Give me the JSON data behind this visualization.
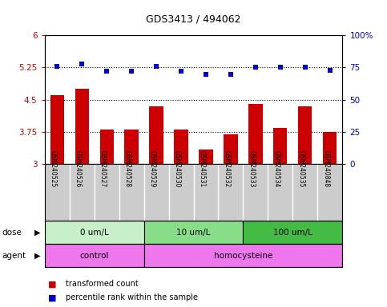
{
  "title": "GDS3413 / 494062",
  "samples": [
    "GSM240525",
    "GSM240526",
    "GSM240527",
    "GSM240528",
    "GSM240529",
    "GSM240530",
    "GSM240531",
    "GSM240532",
    "GSM240533",
    "GSM240534",
    "GSM240535",
    "GSM240848"
  ],
  "bar_values": [
    4.6,
    4.75,
    3.8,
    3.8,
    4.35,
    3.8,
    3.35,
    3.7,
    4.4,
    3.85,
    4.35,
    3.76
  ],
  "dot_values": [
    76,
    78,
    72,
    72,
    76,
    72,
    70,
    70,
    75,
    75,
    75,
    73
  ],
  "bar_color": "#cc0000",
  "dot_color": "#0000cc",
  "ylim_left": [
    3,
    6
  ],
  "ylim_right": [
    0,
    100
  ],
  "yticks_left": [
    3,
    3.75,
    4.5,
    5.25,
    6
  ],
  "yticks_right": [
    0,
    25,
    50,
    75,
    100
  ],
  "ytick_labels_right": [
    "0",
    "25",
    "50",
    "75",
    "100%"
  ],
  "hlines": [
    3.75,
    4.5,
    5.25
  ],
  "dose_labels": [
    "0 um/L",
    "10 um/L",
    "100 um/L"
  ],
  "dose_ranges": [
    [
      0,
      4
    ],
    [
      4,
      8
    ],
    [
      8,
      12
    ]
  ],
  "dose_colors": [
    "#c8f0c8",
    "#88dd88",
    "#44bb44"
  ],
  "agent_labels": [
    "control",
    "homocysteine"
  ],
  "agent_ranges": [
    [
      0,
      4
    ],
    [
      4,
      12
    ]
  ],
  "agent_color": "#ee77ee",
  "legend_items": [
    "transformed count",
    "percentile rank within the sample"
  ],
  "legend_colors": [
    "#cc0000",
    "#0000cc"
  ],
  "sample_bg": "#cccccc"
}
